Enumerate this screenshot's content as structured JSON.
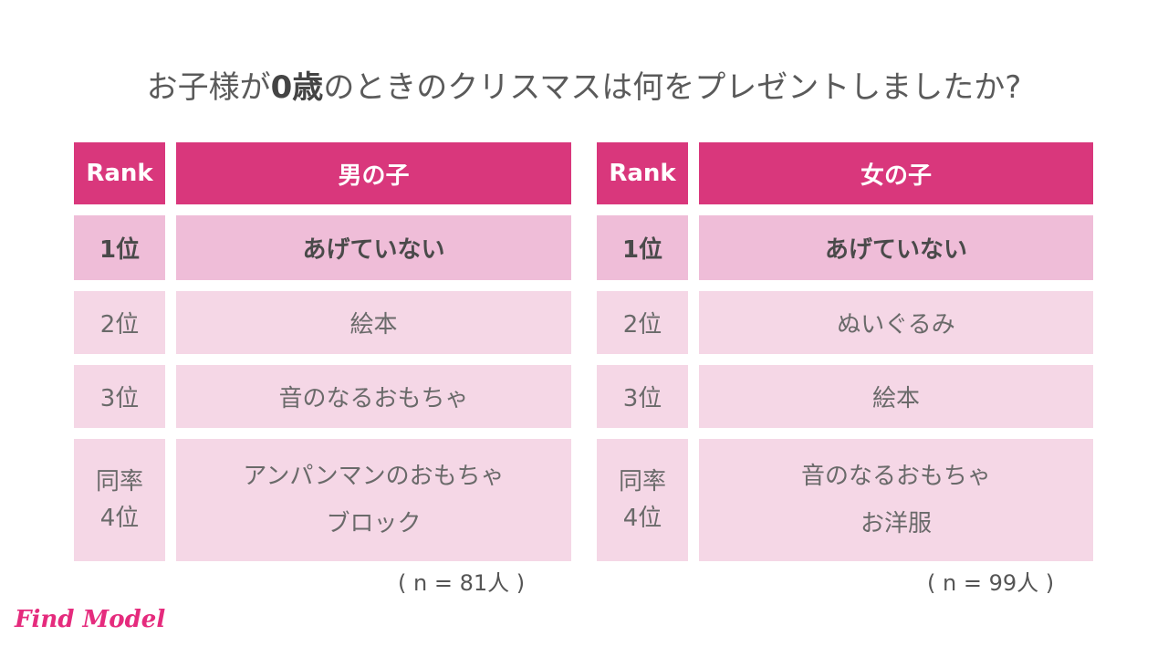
{
  "title": {
    "prefix": "お子様が",
    "highlight": "0歳",
    "suffix": "のときのクリスマスは何をプレゼントしましたか?"
  },
  "colors": {
    "header": "#d9377c",
    "rank1_row": "#efbdd8",
    "other_rows": "#f5d7e6",
    "logo": "#e52b7d"
  },
  "tables": [
    {
      "rank_header": "Rank",
      "group_header": "男の子",
      "rows": [
        {
          "rank": [
            "1位"
          ],
          "items": [
            "あげていない"
          ]
        },
        {
          "rank": [
            "2位"
          ],
          "items": [
            "絵本"
          ]
        },
        {
          "rank": [
            "3位"
          ],
          "items": [
            "音のなるおもちゃ"
          ]
        },
        {
          "rank": [
            "同率",
            "4位"
          ],
          "items": [
            "アンパンマンのおもちゃ",
            "ブロック"
          ]
        }
      ],
      "sample": "( n = 81人 )"
    },
    {
      "rank_header": "Rank",
      "group_header": "女の子",
      "rows": [
        {
          "rank": [
            "1位"
          ],
          "items": [
            "あげていない"
          ]
        },
        {
          "rank": [
            "2位"
          ],
          "items": [
            "ぬいぐるみ"
          ]
        },
        {
          "rank": [
            "3位"
          ],
          "items": [
            "絵本"
          ]
        },
        {
          "rank": [
            "同率",
            "4位"
          ],
          "items": [
            "音のなるおもちゃ",
            "お洋服"
          ]
        }
      ],
      "sample": "( n = 99人 )"
    }
  ],
  "logo": "Find Model"
}
